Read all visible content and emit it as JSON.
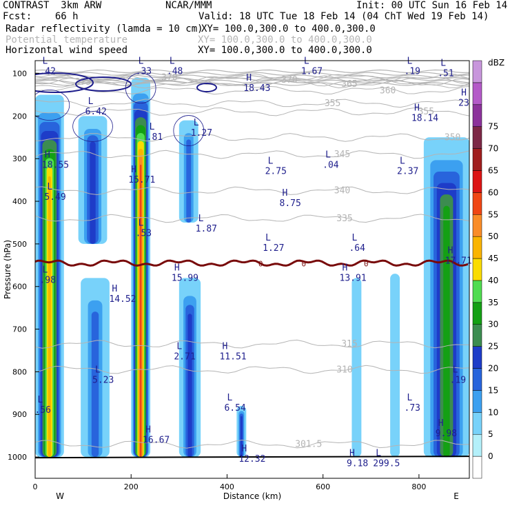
{
  "header": {
    "left1": "CONTRAST  3km ARW",
    "center1": "NCAR/MMM",
    "right1": "Init: 00 UTC Sun 16 Feb 14",
    "left2": "Fcst:    66 h",
    "right2": "Valid: 18 UTC Tue 18 Feb 14 (04 ChT Wed 19 Feb 14)",
    "field1": "Radar reflectivity (lamda = 10 cm)",
    "xy1": "XY= 100.0,300.0 to 400.0,300.0",
    "field2": "Potential temperature",
    "xy2": "XY= 100.0,300.0 to 400.0,300.0",
    "field3": "Horizontal wind speed",
    "xy3": "XY= 100.0,300.0 to 400.0,300.0"
  },
  "colors": {
    "reflectivity": [
      "#ffffff",
      "#b4f0fa",
      "#78d2fa",
      "#3ca0f0",
      "#2864dc",
      "#1e3cc8",
      "#3c8c50",
      "#14a014",
      "#50dc50",
      "#fadc00",
      "#fab400",
      "#fa8c28",
      "#f04614",
      "#dc1414",
      "#a01e1e",
      "#7d2846",
      "#8c329b",
      "#b45ac8",
      "#c896dc"
    ],
    "theta": "#b4b4b4",
    "wind": "#1e1e8c",
    "wind_label": "#1e1e8c",
    "tropopause": "#780a0a",
    "terrain": "#000000"
  },
  "chart_data": {
    "type": "heatmap",
    "title": "Radar reflectivity (lamda = 10 cm)",
    "xlabel": "Distance (km)",
    "ylabel": "Pressure (hPa)",
    "xlim": [
      0,
      905
    ],
    "ylim": [
      1050,
      70
    ],
    "xticks": [
      0,
      200,
      400,
      600,
      800
    ],
    "yticks": [
      100,
      200,
      300,
      400,
      500,
      600,
      700,
      800,
      900,
      1000
    ],
    "x_end_labels": {
      "left": "W",
      "right": "E"
    },
    "colorbar": {
      "unit": "dBZ",
      "levels": [
        0,
        5,
        10,
        15,
        20,
        25,
        30,
        35,
        40,
        45,
        50,
        55,
        60,
        65,
        70,
        75
      ]
    },
    "reflectivity_columns": [
      {
        "x0": 0,
        "x1": 60,
        "p_top": 150,
        "p_bot": 1000,
        "max_dbz": 45
      },
      {
        "x0": 90,
        "x1": 150,
        "p_top": 200,
        "p_bot": 500,
        "max_dbz": 20
      },
      {
        "x0": 200,
        "x1": 240,
        "p_top": 110,
        "p_bot": 1000,
        "max_dbz": 55
      },
      {
        "x0": 300,
        "x1": 340,
        "p_top": 210,
        "p_bot": 450,
        "max_dbz": 15
      },
      {
        "x0": 95,
        "x1": 155,
        "p_top": 580,
        "p_bot": 1000,
        "max_dbz": 15
      },
      {
        "x0": 300,
        "x1": 345,
        "p_top": 580,
        "p_bot": 1000,
        "max_dbz": 20
      },
      {
        "x0": 420,
        "x1": 440,
        "p_top": 880,
        "p_bot": 1000,
        "max_dbz": 20
      },
      {
        "x0": 660,
        "x1": 680,
        "p_top": 580,
        "p_bot": 1000,
        "max_dbz": 5
      },
      {
        "x0": 740,
        "x1": 760,
        "p_top": 570,
        "p_bot": 1000,
        "max_dbz": 5
      },
      {
        "x0": 810,
        "x1": 905,
        "p_top": 250,
        "p_bot": 1000,
        "max_dbz": 30
      }
    ],
    "theta_contours": [
      {
        "label": "375",
        "x": 100,
        "p": 120
      },
      {
        "label": "370",
        "x": 280,
        "p": 110
      },
      {
        "label": "370",
        "x": 530,
        "p": 115
      },
      {
        "label": "365",
        "x": 655,
        "p": 125
      },
      {
        "label": "360",
        "x": 735,
        "p": 140
      },
      {
        "label": "355",
        "x": 620,
        "p": 170
      },
      {
        "label": "355",
        "x": 815,
        "p": 190
      },
      {
        "label": "350",
        "x": 870,
        "p": 250
      },
      {
        "label": "345",
        "x": 640,
        "p": 290
      },
      {
        "label": "340",
        "x": 640,
        "p": 375
      },
      {
        "label": "335",
        "x": 645,
        "p": 440
      },
      {
        "label": "315",
        "x": 655,
        "p": 735
      },
      {
        "label": "310",
        "x": 645,
        "p": 795
      },
      {
        "label": "301.5",
        "x": 570,
        "p": 970
      }
    ],
    "wind_extrema": [
      {
        "kind": "L",
        "value": ".42",
        "x": 15,
        "p": 90
      },
      {
        "kind": "L",
        "value": ".33",
        "x": 215,
        "p": 90
      },
      {
        "kind": "L",
        "value": ".48",
        "x": 280,
        "p": 90
      },
      {
        "kind": "L",
        "value": "1.67",
        "x": 560,
        "p": 90
      },
      {
        "kind": "L",
        "value": ".19",
        "x": 775,
        "p": 90
      },
      {
        "kind": "L",
        "value": ".51",
        "x": 845,
        "p": 95
      },
      {
        "kind": "H",
        "value": "18.43",
        "x": 440,
        "p": 130
      },
      {
        "kind": "H",
        "value": "23",
        "x": 888,
        "p": 165
      },
      {
        "kind": "H",
        "value": "18.14",
        "x": 790,
        "p": 200
      },
      {
        "kind": "L",
        "value": "6.42",
        "x": 110,
        "p": 185
      },
      {
        "kind": "L",
        "value": ".81",
        "x": 238,
        "p": 245
      },
      {
        "kind": "L",
        "value": "1.27",
        "x": 330,
        "p": 235
      },
      {
        "kind": "H",
        "value": "18.55",
        "x": 20,
        "p": 310
      },
      {
        "kind": "L",
        "value": "2.75",
        "x": 485,
        "p": 325
      },
      {
        "kind": "L",
        "value": ".04",
        "x": 605,
        "p": 310
      },
      {
        "kind": "L",
        "value": "2.37",
        "x": 760,
        "p": 325
      },
      {
        "kind": "H",
        "value": "15.71",
        "x": 200,
        "p": 345
      },
      {
        "kind": "L",
        "value": "5.49",
        "x": 25,
        "p": 385
      },
      {
        "kind": "H",
        "value": "8.75",
        "x": 515,
        "p": 400
      },
      {
        "kind": "L",
        "value": ".53",
        "x": 215,
        "p": 470
      },
      {
        "kind": "L",
        "value": "1.87",
        "x": 340,
        "p": 460
      },
      {
        "kind": "L",
        "value": "1.27",
        "x": 480,
        "p": 505
      },
      {
        "kind": "L",
        "value": ".64",
        "x": 660,
        "p": 505
      },
      {
        "kind": "H",
        "value": "17.71",
        "x": 860,
        "p": 535
      },
      {
        "kind": "L",
        "value": ".98",
        "x": 15,
        "p": 580
      },
      {
        "kind": "H",
        "value": "15.99",
        "x": 290,
        "p": 575
      },
      {
        "kind": "H",
        "value": "13.91",
        "x": 640,
        "p": 575
      },
      {
        "kind": "H",
        "value": "14.52",
        "x": 160,
        "p": 625
      },
      {
        "kind": "L",
        "value": "2.71",
        "x": 295,
        "p": 760
      },
      {
        "kind": "H",
        "value": "11.51",
        "x": 390,
        "p": 760
      },
      {
        "kind": "L",
        "value": "5.23",
        "x": 125,
        "p": 815
      },
      {
        "kind": "L",
        "value": ".19",
        "x": 870,
        "p": 815
      },
      {
        "kind": "L",
        "value": ".56",
        "x": 5,
        "p": 885
      },
      {
        "kind": "L",
        "value": "6.54",
        "x": 400,
        "p": 880
      },
      {
        "kind": "L",
        "value": ".73",
        "x": 775,
        "p": 880
      },
      {
        "kind": "H",
        "value": "16.67",
        "x": 230,
        "p": 955
      },
      {
        "kind": "H",
        "value": "9.98",
        "x": 840,
        "p": 940
      },
      {
        "kind": "H",
        "value": "12.32",
        "x": 430,
        "p": 1000
      },
      {
        "kind": "H",
        "value": "9.18",
        "x": 655,
        "p": 1010
      },
      {
        "kind": "L",
        "value": "299.5",
        "x": 710,
        "p": 1010
      }
    ],
    "tropopause": {
      "p_mean": 545,
      "zero_labels": [
        {
          "label": "0",
          "x": 470
        },
        {
          "label": "0",
          "x": 560
        },
        {
          "label": "0",
          "x": 690
        }
      ]
    },
    "terrain_pressure": 1000
  }
}
